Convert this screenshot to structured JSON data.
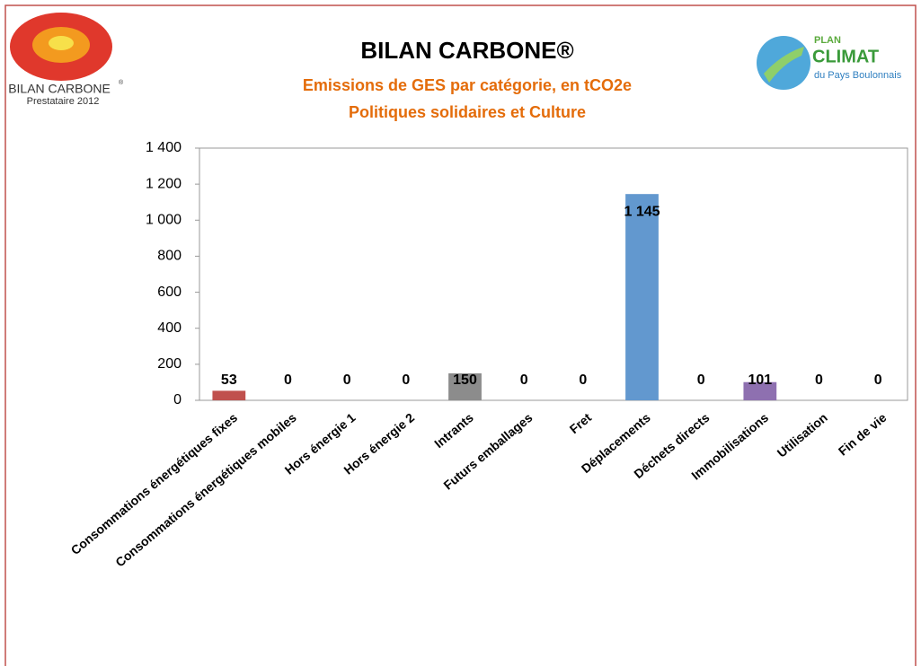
{
  "logos": {
    "left_name": "BILAN CARBONE",
    "left_mark": "®",
    "left_caption": "Prestataire 2012",
    "right_top": "PLAN",
    "right_name": "CLIMAT",
    "right_caption": "du Pays Boulonnais"
  },
  "chart_data": {
    "type": "bar",
    "title": "BILAN CARBONE®",
    "subtitle": [
      "Emissions de GES par catégorie, en tCO2e",
      "Politiques solidaires et Culture"
    ],
    "categories": [
      "Consommations énergétiques fixes",
      "Consommations énergétiques mobiles",
      "Hors énergie 1",
      "Hors énergie 2",
      "Intrants",
      "Futurs emballages",
      "Fret",
      "Déplacements",
      "Déchets directs",
      "Immobilisations",
      "Utilisation",
      "Fin de vie"
    ],
    "values": [
      53,
      0,
      0,
      0,
      150,
      0,
      0,
      1145,
      0,
      101,
      0,
      0
    ],
    "value_labels": [
      "53",
      "0",
      "0",
      "0",
      "150",
      "0",
      "0",
      "1 145",
      "0",
      "101",
      "0",
      "0"
    ],
    "colors": [
      "#c0504d",
      "#c0504d",
      "#9bbb59",
      "#9bbb59",
      "#8c8c8c",
      "#4bacc6",
      "#f79646",
      "#6298cf",
      "#4bacc6",
      "#8e70b0",
      "#4bacc6",
      "#f79646"
    ],
    "ylim": [
      0,
      1400
    ],
    "yticks": [
      0,
      200,
      400,
      600,
      800,
      {
        "value": 1000,
        "label": "1 000"
      },
      {
        "value": 1200,
        "label": "1 200"
      },
      {
        "value": 1400,
        "label": "1 400"
      }
    ]
  }
}
